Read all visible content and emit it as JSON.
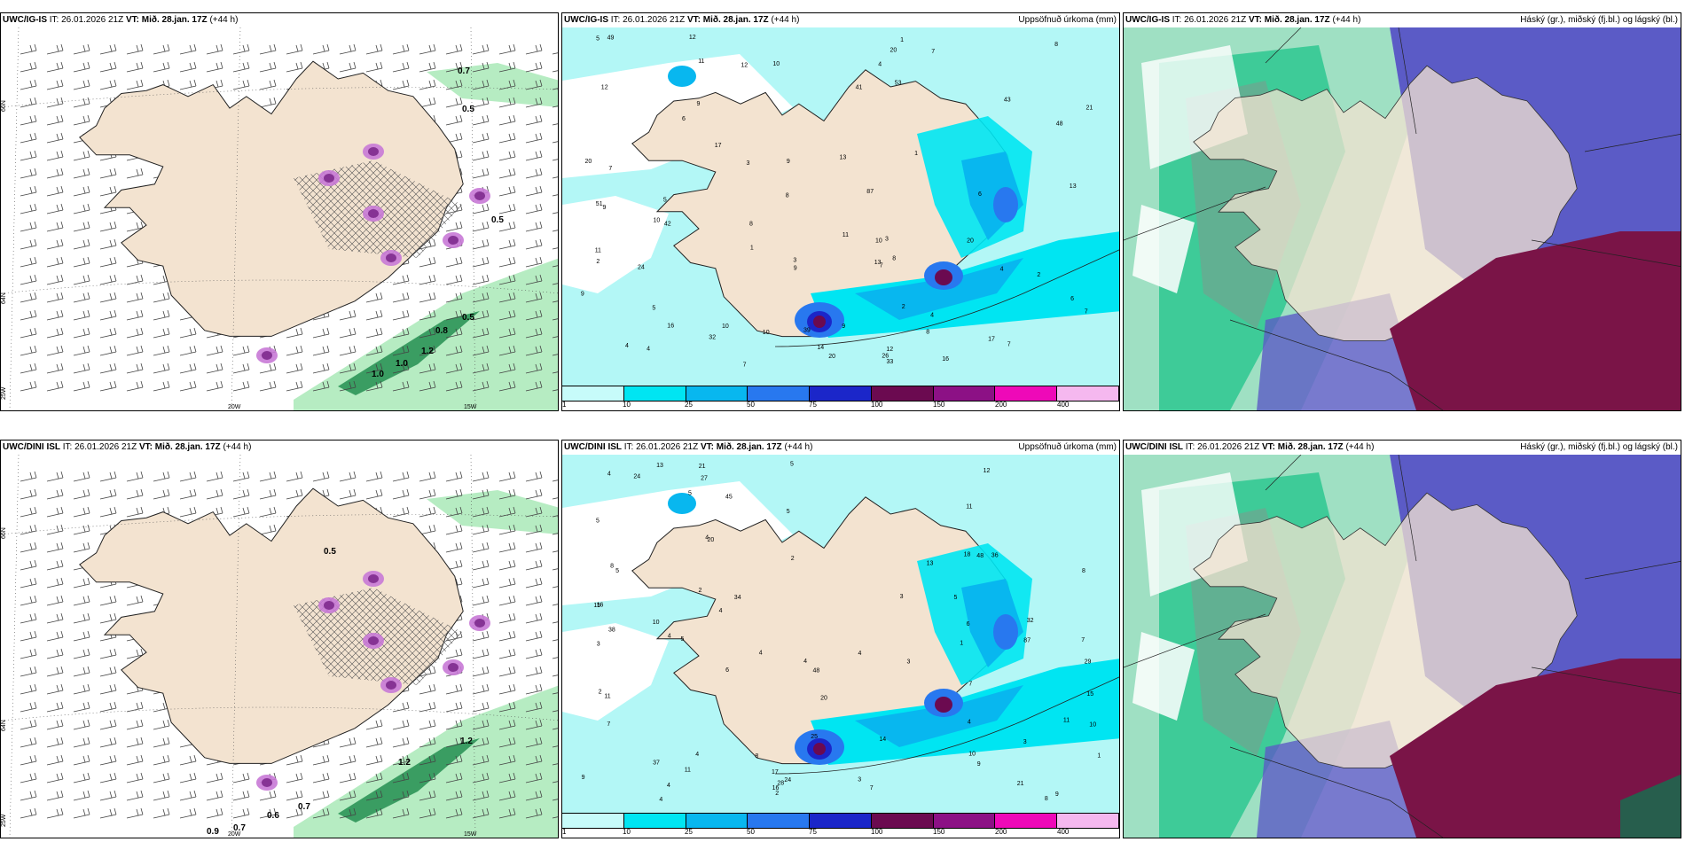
{
  "panels": [
    {
      "id": "p1",
      "model": "UWC/IG-IS",
      "init_prefix": "IT:",
      "init": "26.01.2026 21Z",
      "vt_prefix": "VT:",
      "vt": "Mið. 28.jan. 17Z",
      "lead": "(+44 h)",
      "right_title": "",
      "labels": [
        {
          "t": "0.7"
        },
        {
          "t": "0.5"
        },
        {
          "t": "0.5"
        },
        {
          "t": "0.5"
        },
        {
          "t": "0.8"
        },
        {
          "t": "1.2"
        },
        {
          "t": "1.0"
        },
        {
          "t": "1.0"
        }
      ],
      "lat_labels": [
        "66N",
        "64N",
        "25W"
      ],
      "lon_labels": [
        "20W",
        "15W"
      ]
    },
    {
      "id": "p2",
      "model": "UWC/IG-IS",
      "init_prefix": "IT:",
      "init": "26.01.2026 21Z",
      "vt_prefix": "VT:",
      "vt": "Mið. 28.jan. 17Z",
      "lead": "(+44 h)",
      "right_title": "Uppsöfnuð úrkoma (mm)",
      "numbers": [
        "8",
        "7",
        "8",
        "7",
        "8",
        "9",
        "6",
        "3",
        "3",
        "13",
        "16",
        "20",
        "24",
        "3",
        "4",
        "6",
        "1",
        "2",
        "7",
        "6",
        "11",
        "10",
        "9",
        "4",
        "5",
        "1",
        "8",
        "9",
        "10",
        "7",
        "13",
        "1",
        "10",
        "12",
        "11",
        "12",
        "16",
        "9",
        "7",
        "9",
        "5",
        "41",
        "21",
        "12",
        "7",
        "17",
        "17",
        "12",
        "39",
        "48",
        "53",
        "43",
        "51",
        "49",
        "20",
        "20",
        "10",
        "87",
        "26",
        "20",
        "4",
        "4",
        "10",
        "5",
        "4",
        "2",
        "33",
        "42",
        "9",
        "32",
        "11",
        "13",
        "14",
        "2",
        "8"
      ],
      "legend": [
        "1",
        "10",
        "25",
        "50",
        "75",
        "100",
        "150",
        "200",
        "400"
      ]
    },
    {
      "id": "p3",
      "model": "UWC/IG-IS",
      "init_prefix": "IT:",
      "init": "26.01.2026 21Z",
      "vt_prefix": "VT:",
      "vt": "Mið. 28.jan. 17Z",
      "lead": "(+44 h)",
      "right_title": "Háský (gr.), miðský (fj.bl.) og lágský (bl.)"
    },
    {
      "id": "p4",
      "model": "UWC/DINI ISL",
      "init_prefix": "IT:",
      "init": "26.01.2026 21Z",
      "vt_prefix": "VT:",
      "vt": "Mið. 28.jan. 17Z",
      "lead": "(+44 h)",
      "right_title": "",
      "labels": [
        {
          "t": "0.5"
        },
        {
          "t": "0.6"
        },
        {
          "t": "0.7"
        },
        {
          "t": "0.9"
        },
        {
          "t": "0.7"
        },
        {
          "t": "1.2"
        },
        {
          "t": "1.2"
        }
      ],
      "lat_labels": [
        "66N",
        "64N",
        "25W"
      ],
      "lon_labels": [
        "20W",
        "15W"
      ]
    },
    {
      "id": "p5",
      "model": "UWC/DINI ISL",
      "init_prefix": "IT:",
      "init": "26.01.2026 21Z",
      "vt_prefix": "VT:",
      "vt": "Mið. 28.jan. 17Z",
      "lead": "(+44 h)",
      "right_title": "Uppsöfnuð úrkoma (mm)",
      "numbers": [
        "11",
        "7",
        "4",
        "4",
        "5",
        "4",
        "7",
        "4",
        "6",
        "4",
        "5",
        "12",
        "10",
        "8",
        "16",
        "1",
        "3",
        "5",
        "4",
        "4",
        "5",
        "13",
        "3",
        "9",
        "4",
        "4",
        "4",
        "32",
        "3",
        "3",
        "24",
        "45",
        "2",
        "27",
        "17",
        "28",
        "14",
        "48",
        "36",
        "20",
        "87",
        "29",
        "21",
        "9",
        "20",
        "5",
        "8",
        "7",
        "18",
        "8",
        "25",
        "37",
        "16",
        "15",
        "48",
        "24",
        "11",
        "11",
        "11",
        "21",
        "15",
        "10",
        "1",
        "2",
        "6",
        "7",
        "5",
        "8",
        "13",
        "5",
        "2",
        "4",
        "3",
        "9",
        "10",
        "38",
        "34",
        "2"
      ],
      "legend": [
        "1",
        "10",
        "25",
        "50",
        "75",
        "100",
        "150",
        "200",
        "400"
      ]
    },
    {
      "id": "p6",
      "model": "UWC/DINI ISL",
      "init_prefix": "IT:",
      "init": "26.01.2026 21Z",
      "vt_prefix": "VT:",
      "vt": "Mið. 28.jan. 17Z",
      "lead": "(+44 h)",
      "right_title": "Háský (gr.), miðský (fj.bl.) og lágský (bl.)"
    }
  ],
  "colors": {
    "land": "#f3e3d0",
    "sea_precip_light": "#b3f7f6",
    "cyan": "#00e5f2",
    "mid_blue": "#08b7ef",
    "blue": "#2878ef",
    "dark_blue": "#1b26c9",
    "maroon": "#6b0a50",
    "purple": "#8c1185",
    "magenta": "#ee09b8",
    "pink": "#f5b8ef",
    "high_cloud": "#1ec48a",
    "mid_cloud": "#5b5bc6",
    "low_cloud": "#7a1447",
    "green_light": "#b6ecc2",
    "green_dark": "#1c8a4a"
  }
}
